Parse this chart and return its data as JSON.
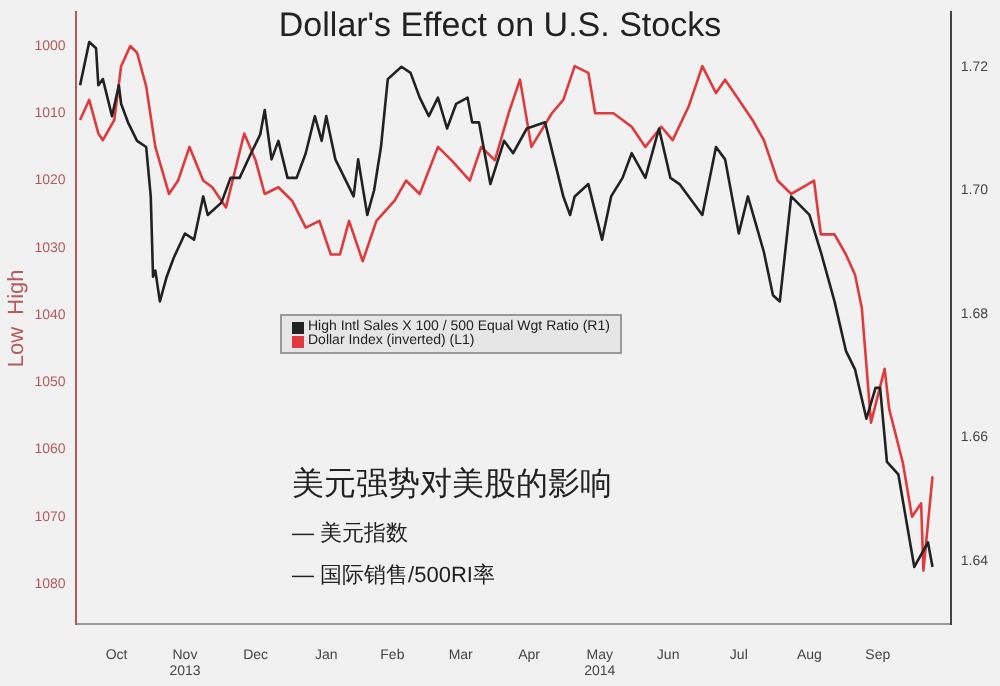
{
  "chart_data": {
    "type": "line",
    "title": "Dollar's Effect on U.S. Stocks",
    "ylabel": "Low  High",
    "xlim": [
      "2013-09-28",
      "2014-10-17"
    ],
    "xticks": [
      {
        "value": "2013-10-16",
        "label": "Oct"
      },
      {
        "value": "2013-11-15",
        "label": "Nov\n2013"
      },
      {
        "value": "2013-12-16",
        "label": "Dec"
      },
      {
        "value": "2014-01-16",
        "label": "Jan"
      },
      {
        "value": "2014-02-14",
        "label": "Feb"
      },
      {
        "value": "2014-03-16",
        "label": "Mar"
      },
      {
        "value": "2014-04-15",
        "label": "Apr"
      },
      {
        "value": "2014-05-16",
        "label": "May\n2014"
      },
      {
        "value": "2014-06-15",
        "label": "Jun"
      },
      {
        "value": "2014-07-16",
        "label": "Jul"
      },
      {
        "value": "2014-08-16",
        "label": "Aug"
      },
      {
        "value": "2014-09-15",
        "label": "Sep"
      }
    ],
    "ylim": [
      1086,
      995
    ],
    "yticks": [
      1000,
      1010,
      1020,
      1030,
      1040,
      1050,
      1060,
      1070,
      1080
    ],
    "y2lim": [
      1.6297,
      1.7288
    ],
    "y2ticks": [
      {
        "value": 1.64,
        "label": "1.64"
      },
      {
        "value": 1.66,
        "label": "1.66"
      },
      {
        "value": 1.68,
        "label": "1.68"
      },
      {
        "value": 1.7,
        "label": "1.70"
      },
      {
        "value": 1.72,
        "label": "1.72"
      }
    ],
    "series": [
      {
        "name": "High Intl Sales X 100 / 500 Equal Wgt Ratio (R1)",
        "color": "#222222",
        "axis": "y2",
        "x": [
          "2013-09-30",
          "2013-10-04",
          "2013-10-07",
          "2013-10-08",
          "2013-10-10",
          "2013-10-12",
          "2013-10-14",
          "2013-10-17",
          "2013-10-18",
          "2013-10-21",
          "2013-10-25",
          "2013-10-29",
          "2013-10-31",
          "2013-11-01",
          "2013-11-02",
          "2013-11-04",
          "2013-11-07",
          "2013-11-10",
          "2013-11-15",
          "2013-11-19",
          "2013-11-23",
          "2013-11-25",
          "2013-12-01",
          "2013-12-05",
          "2013-12-09",
          "2013-12-14",
          "2013-12-18",
          "2013-12-20",
          "2013-12-23",
          "2013-12-26",
          "2013-12-30",
          "2014-01-03",
          "2014-01-07",
          "2014-01-11",
          "2014-01-14",
          "2014-01-16",
          "2014-01-20",
          "2014-01-24",
          "2014-01-28",
          "2014-01-30",
          "2014-02-03",
          "2014-02-06",
          "2014-02-09",
          "2014-02-12",
          "2014-02-18",
          "2014-02-22",
          "2014-02-26",
          "2014-03-02",
          "2014-03-06",
          "2014-03-10",
          "2014-03-14",
          "2014-03-19",
          "2014-03-21",
          "2014-03-24",
          "2014-03-29",
          "2014-04-04",
          "2014-04-08",
          "2014-04-14",
          "2014-04-22",
          "2014-04-30",
          "2014-05-03",
          "2014-05-05",
          "2014-05-11",
          "2014-05-17",
          "2014-05-21",
          "2014-05-26",
          "2014-05-30",
          "2014-06-05",
          "2014-06-11",
          "2014-06-16",
          "2014-06-20",
          "2014-06-24",
          "2014-06-30",
          "2014-07-06",
          "2014-07-10",
          "2014-07-16",
          "2014-07-20",
          "2014-07-27",
          "2014-07-31",
          "2014-08-03",
          "2014-08-08",
          "2014-08-16",
          "2014-08-21",
          "2014-08-27",
          "2014-09-01",
          "2014-09-05",
          "2014-09-10",
          "2014-09-14",
          "2014-09-16",
          "2014-09-19",
          "2014-09-24",
          "2014-10-01",
          "2014-10-07",
          "2014-10-09"
        ],
        "values": [
          1.717,
          1.724,
          1.723,
          1.717,
          1.718,
          1.715,
          1.712,
          1.717,
          1.714,
          1.711,
          1.708,
          1.707,
          1.699,
          1.686,
          1.687,
          1.682,
          1.686,
          1.689,
          1.693,
          1.692,
          1.699,
          1.696,
          1.698,
          1.702,
          1.702,
          1.706,
          1.709,
          1.713,
          1.705,
          1.708,
          1.702,
          1.702,
          1.706,
          1.712,
          1.708,
          1.712,
          1.705,
          1.702,
          1.699,
          1.705,
          1.696,
          1.7,
          1.707,
          1.718,
          1.72,
          1.719,
          1.715,
          1.712,
          1.715,
          1.71,
          1.714,
          1.715,
          1.711,
          1.711,
          1.701,
          1.708,
          1.706,
          1.71,
          1.711,
          1.699,
          1.696,
          1.699,
          1.701,
          1.692,
          1.699,
          1.702,
          1.706,
          1.702,
          1.71,
          1.702,
          1.701,
          1.699,
          1.696,
          1.707,
          1.705,
          1.693,
          1.699,
          1.69,
          1.683,
          1.682,
          1.699,
          1.696,
          1.69,
          1.682,
          1.674,
          1.671,
          1.663,
          1.668,
          1.668,
          1.656,
          1.654,
          1.639,
          1.643,
          1.639
        ]
      },
      {
        "name": "Dollar Index (inverted) (L1)",
        "color": "#e03a3e",
        "axis": "y",
        "x": [
          "2013-09-30",
          "2013-10-04",
          "2013-10-08",
          "2013-10-10",
          "2013-10-15",
          "2013-10-18",
          "2013-10-22",
          "2013-10-25",
          "2013-10-29",
          "2013-11-02",
          "2013-11-08",
          "2013-11-12",
          "2013-11-17",
          "2013-11-23",
          "2013-11-27",
          "2013-12-03",
          "2013-12-11",
          "2013-12-16",
          "2013-12-20",
          "2013-12-26",
          "2014-01-01",
          "2014-01-07",
          "2014-01-13",
          "2014-01-18",
          "2014-01-22",
          "2014-01-26",
          "2014-02-01",
          "2014-02-07",
          "2014-02-15",
          "2014-02-20",
          "2014-02-26",
          "2014-03-06",
          "2014-03-12",
          "2014-03-20",
          "2014-03-25",
          "2014-03-31",
          "2014-04-06",
          "2014-04-11",
          "2014-04-16",
          "2014-04-25",
          "2014-04-30",
          "2014-05-05",
          "2014-05-11",
          "2014-05-14",
          "2014-05-22",
          "2014-05-30",
          "2014-06-05",
          "2014-06-12",
          "2014-06-17",
          "2014-06-24",
          "2014-06-30",
          "2014-07-06",
          "2014-07-10",
          "2014-07-16",
          "2014-07-22",
          "2014-07-27",
          "2014-08-02",
          "2014-08-08",
          "2014-08-13",
          "2014-08-18",
          "2014-08-21",
          "2014-08-27",
          "2014-09-01",
          "2014-09-05",
          "2014-09-08",
          "2014-09-12",
          "2014-09-18",
          "2014-09-20",
          "2014-09-26",
          "2014-09-30",
          "2014-10-04",
          "2014-10-05",
          "2014-10-09"
        ],
        "values": [
          1011,
          1008,
          1013,
          1014,
          1011,
          1003,
          1000,
          1001,
          1006,
          1015,
          1022,
          1020,
          1015,
          1020,
          1021,
          1024,
          1013,
          1017,
          1022,
          1021,
          1023,
          1027,
          1026,
          1031,
          1031,
          1026,
          1032,
          1026,
          1023,
          1020,
          1022,
          1015,
          1017,
          1020,
          1015,
          1017,
          1010,
          1005,
          1015,
          1010,
          1008,
          1003,
          1004,
          1010,
          1010,
          1012,
          1015,
          1012,
          1014,
          1009,
          1003,
          1007,
          1005,
          1008,
          1011,
          1014,
          1020,
          1022,
          1021,
          1020,
          1028,
          1028,
          1031,
          1034,
          1039,
          1056,
          1048,
          1054,
          1062,
          1070,
          1068,
          1078,
          1064
        ]
      }
    ],
    "legend": "left",
    "annotations": [
      "美元强势对美股的影响",
      "— 美元指数",
      "— 国际销售/500RI率"
    ]
  }
}
